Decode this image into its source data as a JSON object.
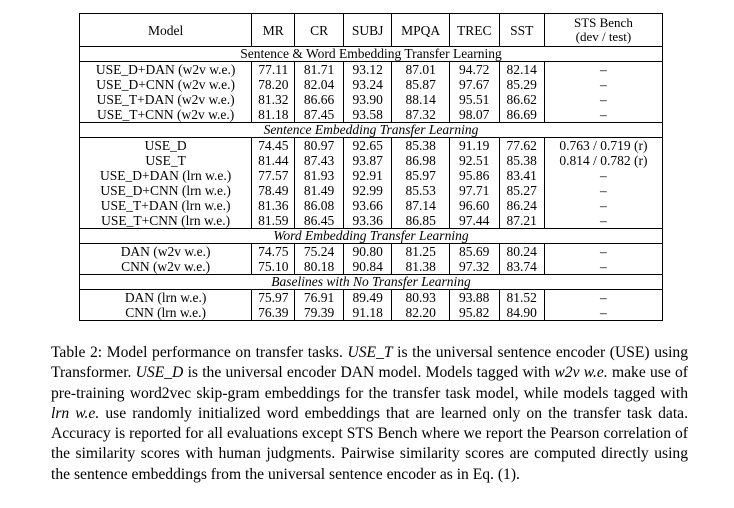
{
  "table": {
    "headers": {
      "model": "Model",
      "mr": "MR",
      "cr": "CR",
      "subj": "SUBJ",
      "mpqa": "MPQA",
      "trec": "TREC",
      "sst": "SST",
      "sts_line1": "STS Bench",
      "sts_line2": "(dev / test)"
    },
    "sections": [
      {
        "title": "Sentence & Word Embedding Transfer Learning",
        "rows": [
          {
            "model": "USE_D+DAN (w2v w.e.)",
            "mr": "77.11",
            "cr": "81.71",
            "subj": "93.12",
            "mpqa": "87.01",
            "trec": "94.72",
            "sst": "82.14",
            "sts": "–"
          },
          {
            "model": "USE_D+CNN (w2v w.e.)",
            "mr": "78.20",
            "cr": "82.04",
            "subj": "93.24",
            "mpqa": "85.87",
            "trec": "97.67",
            "sst": "85.29",
            "sts": "–"
          },
          {
            "model": "USE_T+DAN (w2v w.e.)",
            "mr": "81.32",
            "cr": "86.66",
            "subj": "93.90",
            "mpqa": "88.14",
            "trec": "95.51",
            "sst": "86.62",
            "sts": "–"
          },
          {
            "model": "USE_T+CNN (w2v w.e.)",
            "mr": "81.18",
            "cr": "87.45",
            "subj": "93.58",
            "mpqa": "87.32",
            "trec": "98.07",
            "sst": "86.69",
            "sts": "–"
          }
        ]
      },
      {
        "title": "Sentence Embedding Transfer Learning",
        "rows": [
          {
            "model": "USE_D",
            "mr": "74.45",
            "cr": "80.97",
            "subj": "92.65",
            "mpqa": "85.38",
            "trec": "91.19",
            "sst": "77.62",
            "sts": "0.763 / 0.719 (r)"
          },
          {
            "model": "USE_T",
            "mr": "81.44",
            "cr": "87.43",
            "subj": "93.87",
            "mpqa": "86.98",
            "trec": "92.51",
            "sst": "85.38",
            "sts": "0.814 / 0.782 (r)"
          },
          {
            "model": "USE_D+DAN (lrn w.e.)",
            "mr": "77.57",
            "cr": "81.93",
            "subj": "92.91",
            "mpqa": "85.97",
            "trec": "95.86",
            "sst": "83.41",
            "sts": "–"
          },
          {
            "model": "USE_D+CNN (lrn w.e.)",
            "mr": "78.49",
            "cr": "81.49",
            "subj": "92.99",
            "mpqa": "85.53",
            "trec": "97.71",
            "sst": "85.27",
            "sts": "–"
          },
          {
            "model": "USE_T+DAN (lrn w.e.)",
            "mr": "81.36",
            "cr": "86.08",
            "subj": "93.66",
            "mpqa": "87.14",
            "trec": "96.60",
            "sst": "86.24",
            "sts": "–"
          },
          {
            "model": "USE_T+CNN (lrn w.e.)",
            "mr": "81.59",
            "cr": "86.45",
            "subj": "93.36",
            "mpqa": "86.85",
            "trec": "97.44",
            "sst": "87.21",
            "sts": "–"
          }
        ]
      },
      {
        "title": "Word Embedding Transfer Learning",
        "rows": [
          {
            "model": "DAN (w2v w.e.)",
            "mr": "74.75",
            "cr": "75.24",
            "subj": "90.80",
            "mpqa": "81.25",
            "trec": "85.69",
            "sst": "80.24",
            "sts": "–"
          },
          {
            "model": "CNN (w2v w.e.)",
            "mr": "75.10",
            "cr": "80.18",
            "subj": "90.84",
            "mpqa": "81.38",
            "trec": "97.32",
            "sst": "83.74",
            "sts": "–"
          }
        ]
      },
      {
        "title": "Baselines with No Transfer Learning",
        "rows": [
          {
            "model": "DAN (lrn w.e.)",
            "mr": "75.97",
            "cr": "76.91",
            "subj": "89.49",
            "mpqa": "80.93",
            "trec": "93.88",
            "sst": "81.52",
            "sts": "–"
          },
          {
            "model": "CNN (lrn w.e.)",
            "mr": "76.39",
            "cr": "79.39",
            "subj": "91.18",
            "mpqa": "82.20",
            "trec": "95.82",
            "sst": "84.90",
            "sts": "–"
          }
        ]
      }
    ]
  },
  "caption": {
    "part1": "Table 2: Model performance on transfer tasks. ",
    "em1": "USE_T",
    "part2": " is the universal sentence encoder (USE) using Transformer. ",
    "em2": "USE_D",
    "part3": " is the universal encoder DAN model. Models tagged with ",
    "em3": "w2v w.e.",
    "part4": " make use of pre-training word2vec skip-gram embeddings for the transfer task model, while models tagged with ",
    "em4": "lrn w.e.",
    "part5": " use randomly initialized word embeddings that are learned only on the transfer task data. Accuracy is reported for all evaluations except STS Bench where we report the Pearson correlation of the similarity scores with human judgments. Pairwise similarity scores are computed directly using the sentence embeddings from the universal sentence encoder as in Eq. (1)."
  }
}
